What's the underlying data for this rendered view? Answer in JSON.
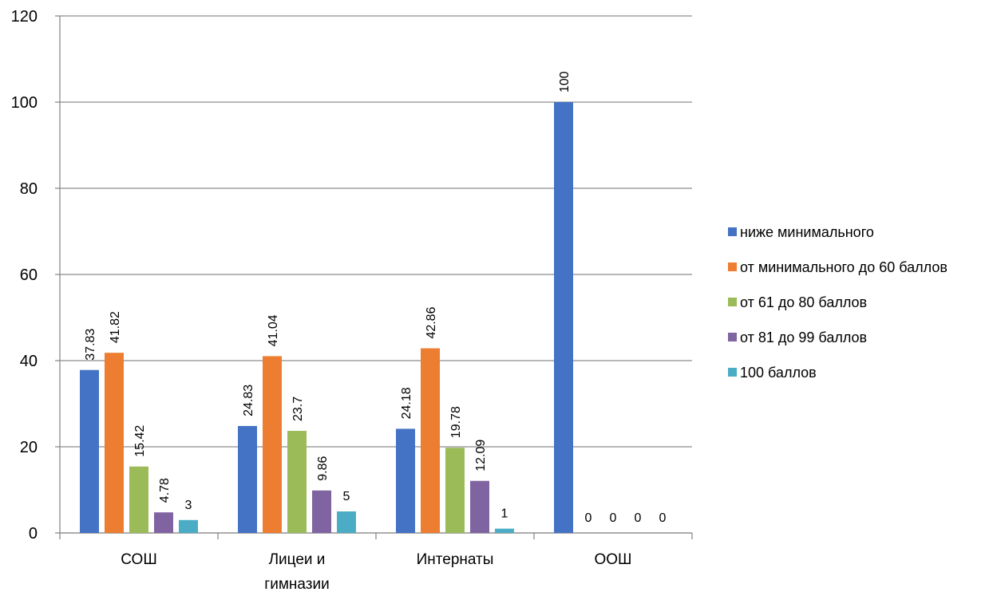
{
  "chart_data": {
    "type": "bar",
    "title": "",
    "xlabel": "",
    "ylabel": "",
    "ylim": [
      0,
      120
    ],
    "yticks": [
      0,
      20,
      40,
      60,
      80,
      100,
      120
    ],
    "grid": true,
    "legend_position": "right",
    "categories": [
      [
        "СОШ"
      ],
      [
        "Лицеи и",
        "гимназии"
      ],
      [
        "Интернаты"
      ],
      [
        "ООШ"
      ]
    ],
    "series": [
      {
        "name": "ниже минимального",
        "color": "#4472C4",
        "values": [
          37.83,
          24.83,
          24.18,
          100
        ],
        "labels": [
          "37.83",
          "24.83",
          "24.18",
          "100"
        ]
      },
      {
        "name": "от минимального до 60 баллов",
        "color": "#ED7D31",
        "values": [
          41.82,
          41.04,
          42.86,
          0
        ],
        "labels": [
          "41.82",
          "41.04",
          "42.86",
          "0"
        ]
      },
      {
        "name": "от 61 до 80 баллов",
        "color": "#9BBB59",
        "values": [
          15.42,
          23.7,
          19.78,
          0
        ],
        "labels": [
          "15.42",
          "23.7",
          "19.78",
          "0"
        ]
      },
      {
        "name": "от 81 до 99 баллов",
        "color": "#8064A2",
        "values": [
          4.78,
          9.86,
          12.09,
          0
        ],
        "labels": [
          "4.78",
          "9.86",
          "12.09",
          "0"
        ]
      },
      {
        "name": "100 баллов",
        "color": "#4BACC6",
        "values": [
          3,
          5,
          1,
          0
        ],
        "labels": [
          "3",
          "5",
          "1",
          "0"
        ]
      }
    ]
  }
}
